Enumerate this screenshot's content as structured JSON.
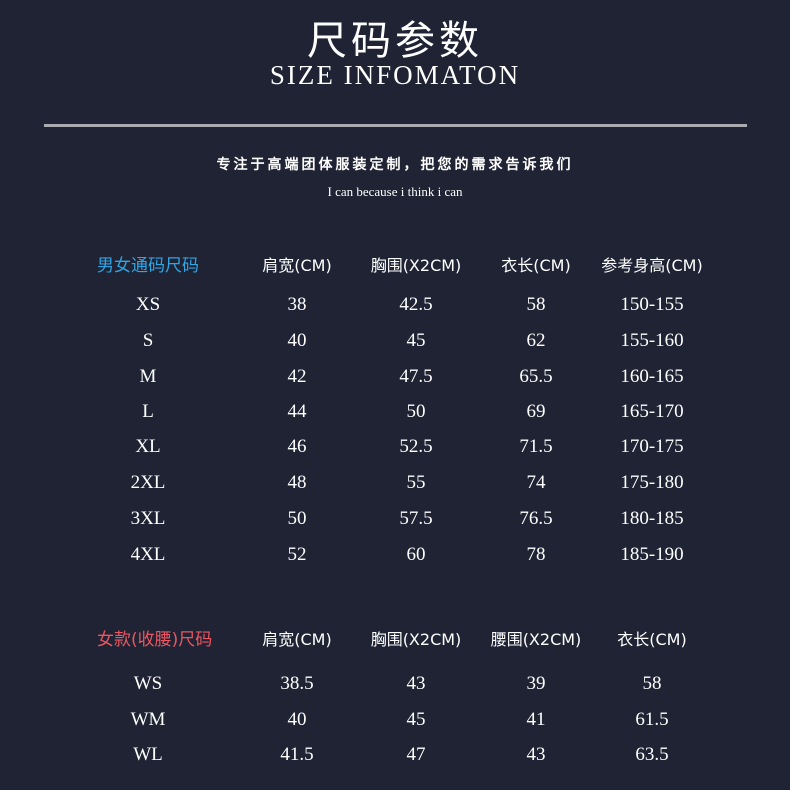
{
  "header": {
    "title": "尺码参数",
    "subtitle": "SIZE INFOMATON",
    "slogan": "专注于高端团体服装定制，把您的需求告诉我们",
    "motto": "I can because i think i can"
  },
  "colors": {
    "background": "#1f2334",
    "unisex_label": "#2ea6e6",
    "women_label": "#ec5660",
    "divider": "#a9abb0"
  },
  "unisex": {
    "label": "男女通码尺码",
    "columns": [
      "肩宽(CM)",
      "胸围(X2CM)",
      "衣长(CM)",
      "参考身高(CM)"
    ],
    "rows": [
      [
        "XS",
        "38",
        "42.5",
        "58",
        "150-155"
      ],
      [
        "S",
        "40",
        "45",
        "62",
        "155-160"
      ],
      [
        "M",
        "42",
        "47.5",
        "65.5",
        "160-165"
      ],
      [
        "L",
        "44",
        "50",
        "69",
        "165-170"
      ],
      [
        "XL",
        "46",
        "52.5",
        "71.5",
        "170-175"
      ],
      [
        "2XL",
        "48",
        "55",
        "74",
        "175-180"
      ],
      [
        "3XL",
        "50",
        "57.5",
        "76.5",
        "180-185"
      ],
      [
        "4XL",
        "52",
        "60",
        "78",
        "185-190"
      ]
    ]
  },
  "women": {
    "label": "女款(收腰)尺码",
    "columns": [
      "肩宽(CM)",
      "胸围(X2CM)",
      "腰围(X2CM)",
      "衣长(CM)"
    ],
    "rows": [
      [
        "WS",
        "38.5",
        "43",
        "39",
        "58"
      ],
      [
        "WM",
        "40",
        "45",
        "41",
        "61.5"
      ],
      [
        "WL",
        "41.5",
        "47",
        "43",
        "63.5"
      ]
    ]
  }
}
